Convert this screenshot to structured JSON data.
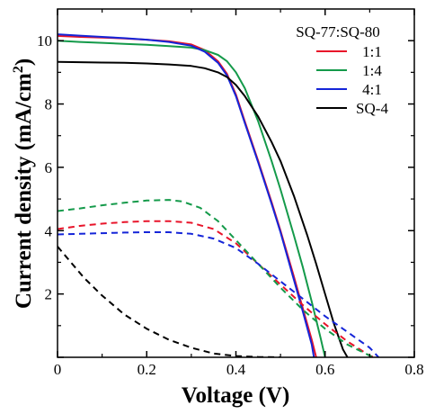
{
  "chart_data": {
    "type": "line",
    "xlabel": "Voltage (V)",
    "ylabel_main": "Current density (mA/cm",
    "ylabel_sup": "2",
    "ylabel_end": ")",
    "xlim": [
      0,
      0.8
    ],
    "ylim": [
      0,
      11
    ],
    "xticks": [
      0,
      0.2,
      0.4,
      0.6,
      0.8
    ],
    "xtick_labels": [
      "0",
      "0.2",
      "0.4",
      "0.6",
      "0.8"
    ],
    "yticks": [
      0,
      2,
      4,
      6,
      8,
      10
    ],
    "ytick_labels": [
      "0",
      "2",
      "4",
      "6",
      "8",
      "10"
    ],
    "grid": false,
    "legend_title": "SQ-77:SQ-80",
    "legend_position": "top-right",
    "series": [
      {
        "name": "1:1",
        "color": "#e8142a",
        "dash": "solid",
        "x": [
          0,
          0.05,
          0.1,
          0.15,
          0.2,
          0.25,
          0.3,
          0.33,
          0.36,
          0.38,
          0.4,
          0.42,
          0.45,
          0.48,
          0.5,
          0.53,
          0.55,
          0.57,
          0.58
        ],
        "y": [
          10.15,
          10.12,
          10.1,
          10.07,
          10.03,
          9.98,
          9.88,
          9.7,
          9.35,
          8.95,
          8.3,
          7.45,
          6.2,
          4.9,
          4.0,
          2.55,
          1.55,
          0.55,
          0.0
        ]
      },
      {
        "name": "1:4",
        "color": "#149a4a",
        "dash": "solid",
        "x": [
          0,
          0.05,
          0.1,
          0.15,
          0.2,
          0.25,
          0.3,
          0.33,
          0.36,
          0.38,
          0.4,
          0.42,
          0.45,
          0.48,
          0.5,
          0.53,
          0.55,
          0.57,
          0.59,
          0.6
        ],
        "y": [
          10.0,
          9.96,
          9.93,
          9.9,
          9.87,
          9.83,
          9.78,
          9.7,
          9.55,
          9.35,
          9.0,
          8.5,
          7.45,
          6.2,
          5.3,
          3.85,
          2.85,
          1.75,
          0.6,
          0.0
        ]
      },
      {
        "name": "4:1",
        "color": "#1525d8",
        "dash": "solid",
        "x": [
          0,
          0.05,
          0.1,
          0.15,
          0.2,
          0.25,
          0.3,
          0.33,
          0.36,
          0.38,
          0.4,
          0.42,
          0.45,
          0.48,
          0.5,
          0.53,
          0.55,
          0.57,
          0.575
        ],
        "y": [
          10.2,
          10.16,
          10.12,
          10.08,
          10.03,
          9.96,
          9.84,
          9.65,
          9.3,
          8.9,
          8.25,
          7.4,
          6.15,
          4.85,
          3.95,
          2.45,
          1.45,
          0.4,
          0.0
        ]
      },
      {
        "name": "SQ-4",
        "color": "#000000",
        "dash": "solid",
        "x": [
          0,
          0.05,
          0.1,
          0.15,
          0.2,
          0.25,
          0.3,
          0.33,
          0.36,
          0.38,
          0.4,
          0.42,
          0.45,
          0.48,
          0.5,
          0.53,
          0.56,
          0.58,
          0.6,
          0.62,
          0.64,
          0.65
        ],
        "y": [
          9.33,
          9.32,
          9.31,
          9.3,
          9.28,
          9.25,
          9.2,
          9.13,
          9.0,
          8.85,
          8.6,
          8.25,
          7.6,
          6.8,
          6.2,
          5.1,
          3.85,
          2.95,
          2.0,
          1.05,
          0.25,
          0.0
        ]
      },
      {
        "color": "#e8142a",
        "dash": "dashed",
        "x": [
          0,
          0.05,
          0.1,
          0.15,
          0.2,
          0.25,
          0.3,
          0.35,
          0.4,
          0.45,
          0.5,
          0.55,
          0.6,
          0.65,
          0.7,
          0.71
        ],
        "y": [
          4.05,
          4.15,
          4.22,
          4.27,
          4.3,
          4.3,
          4.25,
          4.05,
          3.6,
          2.95,
          2.3,
          1.65,
          1.05,
          0.5,
          0.05,
          0.0
        ]
      },
      {
        "color": "#149a4a",
        "dash": "dashed",
        "x": [
          0,
          0.05,
          0.1,
          0.15,
          0.2,
          0.25,
          0.28,
          0.32,
          0.36,
          0.4,
          0.45,
          0.5,
          0.55,
          0.6,
          0.65,
          0.7,
          0.71
        ],
        "y": [
          4.62,
          4.7,
          4.8,
          4.88,
          4.95,
          4.97,
          4.92,
          4.72,
          4.3,
          3.7,
          2.95,
          2.2,
          1.5,
          0.9,
          0.4,
          0.05,
          0.0
        ]
      },
      {
        "color": "#1525d8",
        "dash": "dashed",
        "x": [
          0,
          0.05,
          0.1,
          0.15,
          0.2,
          0.25,
          0.3,
          0.35,
          0.4,
          0.45,
          0.5,
          0.55,
          0.6,
          0.65,
          0.7,
          0.72
        ],
        "y": [
          3.88,
          3.9,
          3.92,
          3.94,
          3.95,
          3.95,
          3.9,
          3.75,
          3.45,
          2.95,
          2.4,
          1.85,
          1.3,
          0.8,
          0.3,
          0.0
        ]
      },
      {
        "color": "#000000",
        "dash": "dashed",
        "x": [
          0,
          0.03,
          0.06,
          0.1,
          0.15,
          0.2,
          0.25,
          0.3,
          0.35,
          0.4,
          0.45,
          0.5
        ],
        "y": [
          3.5,
          3.0,
          2.5,
          1.95,
          1.35,
          0.9,
          0.55,
          0.3,
          0.12,
          0.04,
          0.01,
          0.0
        ]
      }
    ]
  }
}
